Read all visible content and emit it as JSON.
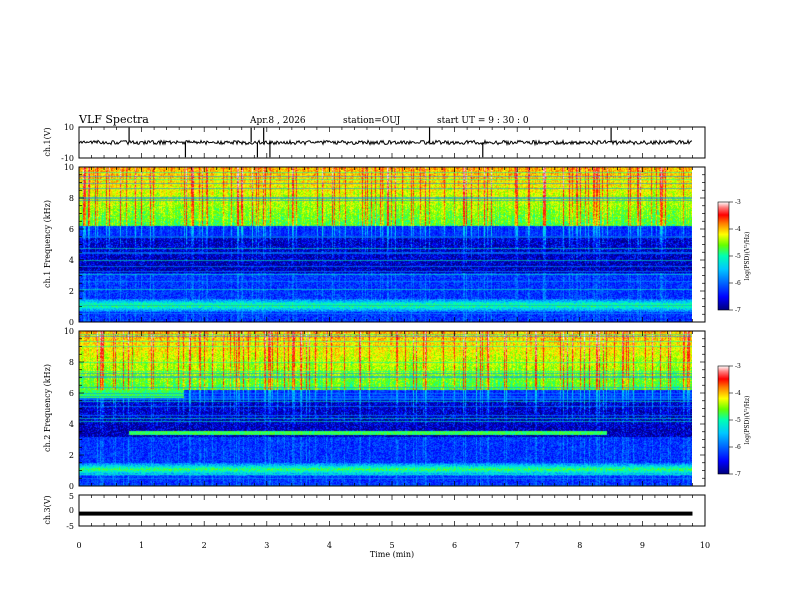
{
  "header": {
    "title": "VLF Spectra",
    "date": "Apr.8 , 2026",
    "station": "station=OUJ",
    "start": "start UT =  9 : 30 : 0"
  },
  "chart_data": [
    {
      "type": "line",
      "name": "ch1-waveform",
      "ylabel": "ch.1(V)",
      "ylim": [
        -10,
        10
      ],
      "yticks": [
        "10",
        "-10"
      ],
      "baseline": 0,
      "spikes_min": [
        0.8,
        1.7,
        2.75,
        2.85,
        2.95,
        3.05,
        5.6,
        6.45,
        8.5
      ]
    },
    {
      "type": "heatmap",
      "name": "ch1-spectrogram",
      "ylabel": "ch.1  Frequency (kHz)",
      "ylim": [
        0,
        10
      ],
      "yticks": [
        "0",
        "2",
        "4",
        "6",
        "8",
        "10"
      ],
      "colorbar": {
        "label": "log(PSD)(V²/Hz)",
        "range": [
          -7,
          -3
        ],
        "ticks": [
          "-3",
          "-4",
          "-5",
          "-6",
          "-7"
        ]
      }
    },
    {
      "type": "heatmap",
      "name": "ch2-spectrogram",
      "ylabel": "ch.2  Frequency (kHz)",
      "ylim": [
        0,
        10
      ],
      "yticks": [
        "0",
        "2",
        "4",
        "6",
        "8",
        "10"
      ],
      "colorbar": {
        "label": "log(PSD)(V²/Hz)",
        "range": [
          -7,
          -3
        ],
        "ticks": [
          "-3",
          "-4",
          "-5",
          "-6",
          "-7"
        ]
      }
    },
    {
      "type": "line",
      "name": "ch3-waveform",
      "ylabel": "ch.3(V)",
      "ylim": [
        -5,
        5
      ],
      "yticks": [
        "5",
        "0",
        "-5"
      ],
      "baseline": -1
    }
  ],
  "xaxis": {
    "label": "Time (min)",
    "range": [
      0,
      10
    ],
    "ticks": [
      "0",
      "1",
      "2",
      "3",
      "4",
      "5",
      "6",
      "7",
      "8",
      "9",
      "10"
    ],
    "data_end": 9.8
  },
  "colors": {
    "cmap": [
      "#00007a",
      "#0000ff",
      "#0064ff",
      "#00c8ff",
      "#00ffb4",
      "#64ff00",
      "#ffff00",
      "#ff8000",
      "#ff0000",
      "#ff8080",
      "#ffffff"
    ]
  }
}
